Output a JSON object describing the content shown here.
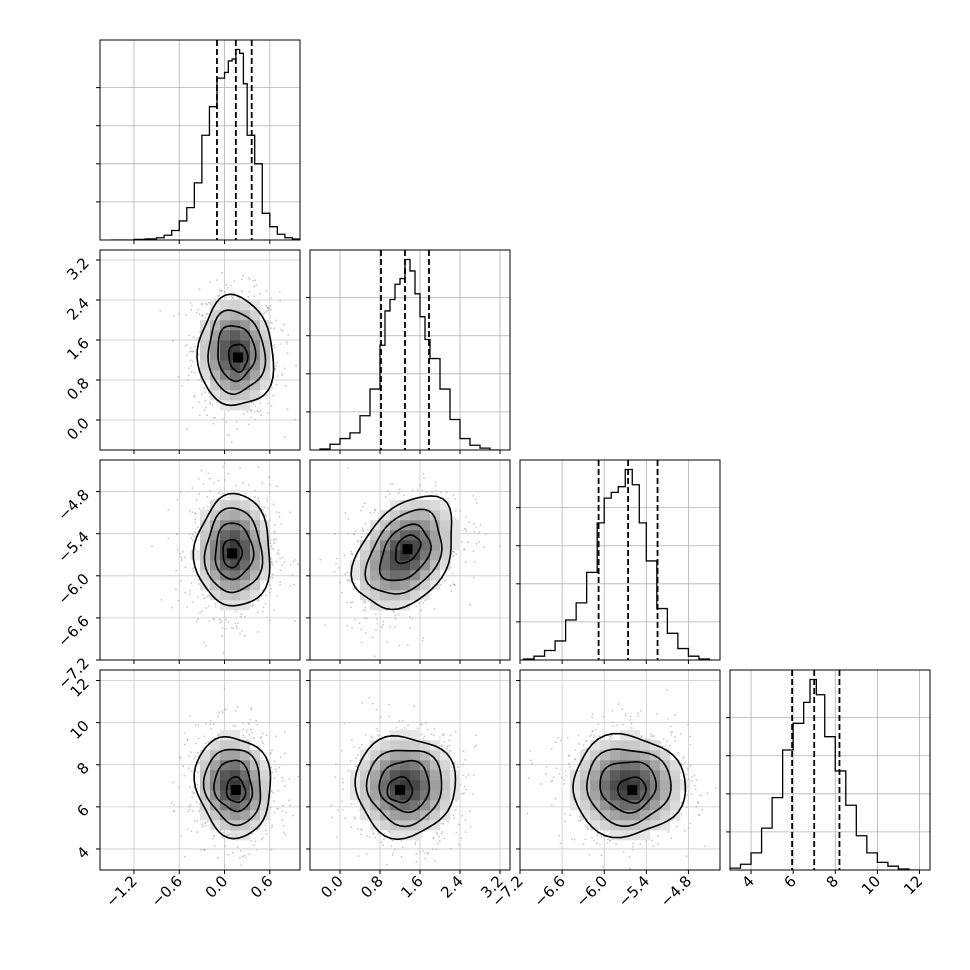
{
  "chart_data": {
    "type": "corner",
    "title": "",
    "grid": true,
    "parameters": [
      {
        "label": "",
        "range": [
          -1.65,
          1.0
        ],
        "ticks": [
          "-1.2",
          "-0.6",
          "0.0",
          "0.6"
        ],
        "tick_values": [
          -1.2,
          -0.6,
          0.0,
          0.6
        ],
        "quantiles": [
          -0.1,
          0.15,
          0.36
        ],
        "hist_x": [
          -1.5,
          -1.35,
          -1.2,
          -1.05,
          -0.9,
          -0.8,
          -0.7,
          -0.6,
          -0.5,
          -0.4,
          -0.3,
          -0.2,
          -0.1,
          0.0,
          0.05,
          0.1,
          0.15,
          0.2,
          0.25,
          0.3,
          0.4,
          0.5,
          0.6,
          0.7,
          0.8,
          0.9
        ],
        "hist_y": [
          0,
          0,
          0.003,
          0.006,
          0.012,
          0.025,
          0.05,
          0.1,
          0.17,
          0.3,
          0.55,
          0.7,
          0.85,
          0.88,
          0.94,
          0.95,
          1.0,
          0.98,
          0.82,
          0.55,
          0.4,
          0.14,
          0.07,
          0.03,
          0.012,
          0.005
        ],
        "hist_ymax": 1.0
      },
      {
        "label": "",
        "range": [
          -0.6,
          3.4
        ],
        "ticks": [
          "0.0",
          "0.8",
          "1.6",
          "2.4",
          "3.2"
        ],
        "tick_values": [
          0.0,
          0.8,
          1.6,
          2.4,
          3.2
        ],
        "quantiles": [
          0.82,
          1.3,
          1.78
        ],
        "hist_x": [
          -0.4,
          -0.2,
          0.0,
          0.2,
          0.4,
          0.6,
          0.8,
          0.9,
          1.0,
          1.1,
          1.2,
          1.3,
          1.4,
          1.5,
          1.6,
          1.7,
          1.8,
          2.0,
          2.2,
          2.4,
          2.6,
          2.8,
          3.0
        ],
        "hist_y": [
          0.005,
          0.03,
          0.06,
          0.09,
          0.18,
          0.32,
          0.55,
          0.73,
          0.79,
          0.87,
          0.9,
          1.0,
          0.94,
          0.82,
          0.7,
          0.58,
          0.48,
          0.32,
          0.16,
          0.06,
          0.025,
          0.01,
          0.0
        ],
        "hist_ymax": 1.0
      },
      {
        "label": "",
        "range": [
          -7.2,
          -4.35
        ],
        "ticks": [
          "-7.2",
          "-6.6",
          "-6.0",
          "-5.4",
          "-4.8"
        ],
        "tick_values": [
          -7.2,
          -6.6,
          -6.0,
          -5.4,
          -4.8
        ],
        "quantiles": [
          -6.08,
          -5.66,
          -5.24
        ],
        "hist_x": [
          -7.15,
          -7.0,
          -6.85,
          -6.7,
          -6.55,
          -6.4,
          -6.25,
          -6.1,
          -6.0,
          -5.9,
          -5.8,
          -5.7,
          -5.6,
          -5.5,
          -5.4,
          -5.25,
          -5.1,
          -4.95,
          -4.8,
          -4.65
        ],
        "hist_y": [
          0.005,
          0.02,
          0.05,
          0.1,
          0.21,
          0.3,
          0.46,
          0.72,
          0.85,
          0.88,
          0.91,
          1.0,
          0.92,
          0.72,
          0.52,
          0.27,
          0.14,
          0.06,
          0.02,
          0.005
        ],
        "hist_ymax": 1.0
      },
      {
        "label": "",
        "range": [
          3.0,
          12.5
        ],
        "ticks": [
          "4",
          "6",
          "8",
          "10",
          "12"
        ],
        "tick_values": [
          4,
          6,
          8,
          10,
          12
        ],
        "quantiles": [
          5.95,
          7.0,
          8.2
        ],
        "hist_x": [
          3.0,
          3.5,
          4.0,
          4.5,
          5.0,
          5.5,
          6.0,
          6.5,
          6.8,
          7.1,
          7.5,
          8.0,
          8.5,
          9.0,
          9.5,
          10.0,
          10.5,
          11.0,
          11.5
        ],
        "hist_y": [
          0.01,
          0.03,
          0.09,
          0.22,
          0.38,
          0.63,
          0.77,
          0.88,
          1.0,
          0.92,
          0.7,
          0.52,
          0.34,
          0.18,
          0.09,
          0.04,
          0.02,
          0.005,
          0.0
        ],
        "hist_ymax": 1.0
      }
    ],
    "pairs": [
      {
        "x": 0,
        "y": 1,
        "center": [
          0.15,
          1.35
        ],
        "sigma": [
          0.25,
          0.55
        ],
        "rho": -0.05,
        "peak": [
          0.18,
          1.25
        ]
      },
      {
        "x": 0,
        "y": 2,
        "center": [
          0.12,
          -5.65
        ],
        "sigma": [
          0.25,
          0.4
        ],
        "rho": 0.0,
        "peak": [
          0.1,
          -5.68
        ]
      },
      {
        "x": 1,
        "y": 2,
        "center": [
          1.3,
          -5.68
        ],
        "sigma": [
          0.5,
          0.4
        ],
        "rho": 0.35,
        "peak": [
          1.35,
          -5.62
        ]
      },
      {
        "x": 0,
        "y": 3,
        "center": [
          0.12,
          7.0
        ],
        "sigma": [
          0.25,
          1.2
        ],
        "rho": -0.1,
        "peak": [
          0.15,
          6.8
        ]
      },
      {
        "x": 1,
        "y": 3,
        "center": [
          1.3,
          7.0
        ],
        "sigma": [
          0.5,
          1.2
        ],
        "rho": 0.0,
        "peak": [
          1.2,
          6.8
        ]
      },
      {
        "x": 2,
        "y": 3,
        "center": [
          -5.66,
          7.0
        ],
        "sigma": [
          0.4,
          1.2
        ],
        "rho": 0.0,
        "peak": [
          -5.6,
          6.8
        ]
      }
    ],
    "contour_levels": [
      0.5,
      1.0,
      1.5,
      2.0
    ]
  }
}
